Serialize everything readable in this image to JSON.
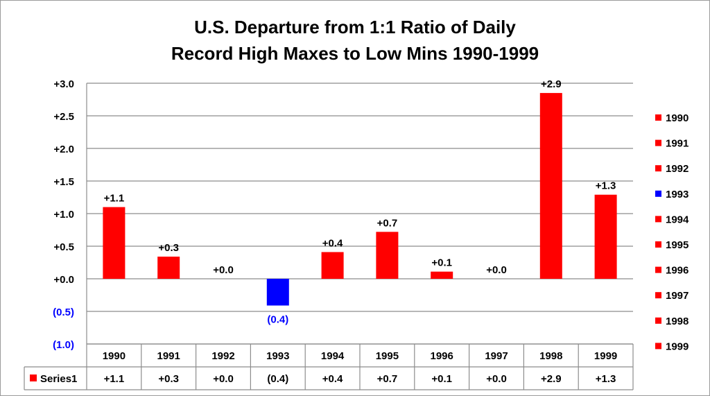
{
  "title": {
    "line1": "U.S. Departure from 1:1 Ratio of Daily",
    "line2": "Record High Maxes to Low Mins 1990-1999"
  },
  "colors": {
    "positive": "#ff0000",
    "negative": "#0000ff",
    "axis_text": "#000000",
    "negative_text": "#0000ff",
    "grid": "#8c8c8c"
  },
  "chart_data": {
    "type": "bar",
    "title": "U.S. Departure from 1:1 Ratio of Daily Record High Maxes to Low Mins 1990-1999",
    "categories": [
      "1990",
      "1991",
      "1992",
      "1993",
      "1994",
      "1995",
      "1996",
      "1997",
      "1998",
      "1999"
    ],
    "series": [
      {
        "name": "Series1",
        "values": [
          1.1,
          0.34,
          0.0,
          -0.41,
          0.41,
          0.72,
          0.11,
          0.0,
          2.85,
          1.29
        ]
      }
    ],
    "data_labels": [
      "+1.1",
      "+0.3",
      "+0.0",
      "(0.4)",
      "+0.4",
      "+0.7",
      "+0.1",
      "+0.0",
      "+2.9",
      "+1.3"
    ],
    "ylim": [
      -1.0,
      3.0
    ],
    "yticks": [
      3.0,
      2.5,
      2.0,
      1.5,
      1.0,
      0.5,
      0.0,
      -0.5,
      -1.0
    ],
    "ytick_labels": [
      "+3.0",
      "+2.5",
      "+2.0",
      "+1.5",
      "+1.0",
      "+0.5",
      "+0.0",
      "(0.5)",
      "(1.0)"
    ],
    "grid": true,
    "legend_position": "right",
    "legend_entries": [
      "1990",
      "1991",
      "1992",
      "1993",
      "1994",
      "1995",
      "1996",
      "1997",
      "1998",
      "1999"
    ],
    "data_table": {
      "series_label": "Series1",
      "values": [
        "+1.1",
        "+0.3",
        "+0.0",
        "(0.4)",
        "+0.4",
        "+0.7",
        "+0.1",
        "+0.0",
        "+2.9",
        "+1.3"
      ]
    }
  }
}
